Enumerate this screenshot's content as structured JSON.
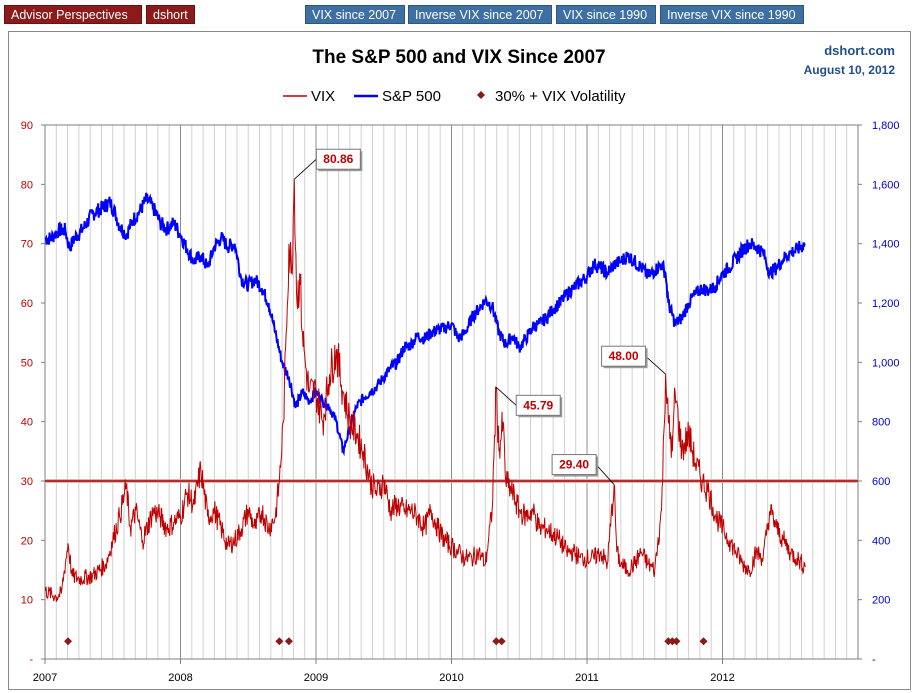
{
  "nav": {
    "buttons": [
      {
        "label": "Advisor Perspectives",
        "style": "red"
      },
      {
        "label": "dshort",
        "style": "red"
      },
      {
        "label": "VIX since 2007",
        "style": "blue"
      },
      {
        "label": "Inverse VIX since 2007",
        "style": "blue"
      },
      {
        "label": "VIX since 1990",
        "style": "blue"
      },
      {
        "label": "Inverse VIX since 1990",
        "style": "blue"
      }
    ]
  },
  "colors": {
    "vix": "#c00000",
    "sp500": "#0000ff",
    "threshold_line": "#b03030",
    "marker": "#8b1a1a",
    "left_axis_text": "#c00000",
    "right_axis_text": "#0000cc",
    "source_text": "#1f4e8c",
    "nav_red": "#8b1a1a",
    "nav_blue": "#3d6fa3"
  },
  "chart_data": {
    "type": "line",
    "title": "The S&P 500 and VIX Since 2007",
    "source": "dshort.com",
    "date": "August 10, 2012",
    "legend": [
      {
        "name": "VIX",
        "kind": "line",
        "color": "#c00000"
      },
      {
        "name": "S&P 500",
        "kind": "line",
        "color": "#0000ff"
      },
      {
        "name": "30% + VIX Volatility",
        "kind": "marker",
        "color": "#8b1a1a"
      }
    ],
    "legend_position": "top-center",
    "x_ticks": [
      "2007",
      "2008",
      "2009",
      "2010",
      "2011",
      "2012"
    ],
    "xlim": [
      2007.0,
      2013.0
    ],
    "left_axis": {
      "label": "VIX",
      "ylim": [
        0,
        90
      ],
      "ticks": [
        "-",
        "10",
        "20",
        "30",
        "40",
        "50",
        "60",
        "70",
        "80",
        "90"
      ]
    },
    "right_axis": {
      "label": "S&P 500",
      "ylim": [
        0,
        1800
      ],
      "ticks": [
        "-",
        "200",
        "400",
        "600",
        "800",
        "1,000",
        "1,200",
        "1,400",
        "1,600",
        "1,800"
      ]
    },
    "grid": "vertical minor gridlines",
    "threshold": {
      "value": 30,
      "axis": "left"
    },
    "series": [
      {
        "name": "VIX",
        "axis": "left",
        "x": [
          2007.0,
          2007.08,
          2007.12,
          2007.17,
          2007.2,
          2007.25,
          2007.35,
          2007.45,
          2007.5,
          2007.55,
          2007.6,
          2007.63,
          2007.67,
          2007.72,
          2007.8,
          2007.85,
          2007.9,
          2007.95,
          2008.0,
          2008.05,
          2008.1,
          2008.15,
          2008.2,
          2008.25,
          2008.3,
          2008.35,
          2008.4,
          2008.45,
          2008.5,
          2008.55,
          2008.6,
          2008.65,
          2008.7,
          2008.73,
          2008.76,
          2008.78,
          2008.8,
          2008.82,
          2008.84,
          2008.86,
          2008.88,
          2008.9,
          2008.92,
          2008.95,
          2009.0,
          2009.05,
          2009.1,
          2009.15,
          2009.2,
          2009.25,
          2009.3,
          2009.35,
          2009.4,
          2009.45,
          2009.5,
          2009.55,
          2009.6,
          2009.65,
          2009.7,
          2009.75,
          2009.8,
          2009.85,
          2009.9,
          2009.95,
          2010.0,
          2010.05,
          2010.1,
          2010.15,
          2010.2,
          2010.25,
          2010.3,
          2010.33,
          2010.35,
          2010.38,
          2010.4,
          2010.45,
          2010.5,
          2010.55,
          2010.6,
          2010.65,
          2010.7,
          2010.75,
          2010.8,
          2010.85,
          2010.9,
          2010.95,
          2011.0,
          2011.05,
          2011.1,
          2011.15,
          2011.2,
          2011.22,
          2011.25,
          2011.3,
          2011.35,
          2011.4,
          2011.45,
          2011.5,
          2011.55,
          2011.58,
          2011.6,
          2011.63,
          2011.65,
          2011.7,
          2011.75,
          2011.8,
          2011.85,
          2011.9,
          2011.95,
          2012.0,
          2012.05,
          2012.1,
          2012.15,
          2012.2,
          2012.25,
          2012.3,
          2012.35,
          2012.4,
          2012.45,
          2012.5,
          2012.55,
          2012.61
        ],
        "values": [
          11.5,
          10.5,
          11,
          19.5,
          14,
          13.5,
          14,
          16,
          20,
          24,
          29,
          22,
          25,
          20,
          25,
          24,
          22,
          23,
          24,
          28,
          26,
          32,
          24,
          25,
          22,
          19,
          20,
          22,
          25,
          22,
          25,
          22,
          24,
          30,
          40,
          55,
          70,
          65,
          80.86,
          60,
          65,
          55,
          50,
          45,
          45,
          40,
          48,
          52,
          45,
          40,
          38,
          35,
          30,
          28,
          30,
          25,
          26,
          25,
          25,
          24,
          22,
          25,
          22,
          20,
          19,
          18,
          17,
          17,
          18,
          16,
          25,
          45.79,
          35,
          40,
          30,
          28,
          25,
          24,
          25,
          22,
          22,
          21,
          20,
          18,
          18,
          17,
          17,
          17,
          18,
          16,
          29.4,
          18,
          16,
          15,
          16,
          18,
          16,
          15,
          25,
          48,
          40,
          35,
          45,
          35,
          38,
          33,
          30,
          28,
          24,
          22,
          20,
          18,
          16,
          15,
          18,
          17,
          25,
          22,
          20,
          18,
          17,
          15.5
        ],
        "labels": [
          {
            "text": "80.86",
            "x": 2008.84,
            "y": 80.86
          },
          {
            "text": "45.79",
            "x": 2010.33,
            "y": 45.79
          },
          {
            "text": "29.40",
            "x": 2011.2,
            "y": 29.4
          },
          {
            "text": "48.00",
            "x": 2011.58,
            "y": 48.0
          }
        ]
      },
      {
        "name": "S&P 500",
        "axis": "right",
        "x": [
          2007.0,
          2007.05,
          2007.1,
          2007.15,
          2007.18,
          2007.22,
          2007.28,
          2007.35,
          2007.42,
          2007.48,
          2007.52,
          2007.55,
          2007.6,
          2007.65,
          2007.7,
          2007.75,
          2007.8,
          2007.85,
          2007.9,
          2007.95,
          2008.0,
          2008.05,
          2008.1,
          2008.15,
          2008.2,
          2008.25,
          2008.3,
          2008.35,
          2008.4,
          2008.45,
          2008.5,
          2008.55,
          2008.6,
          2008.65,
          2008.7,
          2008.75,
          2008.8,
          2008.85,
          2008.9,
          2008.95,
          2009.0,
          2009.05,
          2009.1,
          2009.15,
          2009.2,
          2009.25,
          2009.3,
          2009.35,
          2009.4,
          2009.45,
          2009.5,
          2009.55,
          2009.6,
          2009.65,
          2009.7,
          2009.75,
          2009.8,
          2009.85,
          2009.9,
          2009.95,
          2010.0,
          2010.05,
          2010.1,
          2010.15,
          2010.2,
          2010.25,
          2010.3,
          2010.35,
          2010.4,
          2010.45,
          2010.5,
          2010.55,
          2010.6,
          2010.65,
          2010.7,
          2010.75,
          2010.8,
          2010.85,
          2010.9,
          2010.95,
          2011.0,
          2011.05,
          2011.1,
          2011.15,
          2011.2,
          2011.25,
          2011.3,
          2011.35,
          2011.4,
          2011.45,
          2011.5,
          2011.55,
          2011.58,
          2011.6,
          2011.65,
          2011.7,
          2011.75,
          2011.8,
          2011.85,
          2011.9,
          2011.95,
          2012.0,
          2012.05,
          2012.1,
          2012.15,
          2012.2,
          2012.25,
          2012.3,
          2012.35,
          2012.4,
          2012.45,
          2012.5,
          2012.55,
          2012.61
        ],
        "values": [
          1415,
          1420,
          1445,
          1445,
          1385,
          1420,
          1450,
          1500,
          1520,
          1540,
          1500,
          1460,
          1430,
          1480,
          1510,
          1550,
          1520,
          1470,
          1450,
          1470,
          1430,
          1380,
          1340,
          1360,
          1320,
          1390,
          1420,
          1390,
          1400,
          1280,
          1260,
          1280,
          1250,
          1200,
          1100,
          1000,
          950,
          850,
          900,
          870,
          900,
          870,
          850,
          800,
          700,
          780,
          850,
          880,
          900,
          920,
          950,
          980,
          1000,
          1050,
          1060,
          1090,
          1080,
          1100,
          1110,
          1115,
          1130,
          1080,
          1100,
          1150,
          1180,
          1210,
          1190,
          1100,
          1060,
          1090,
          1050,
          1080,
          1120,
          1130,
          1150,
          1180,
          1200,
          1230,
          1250,
          1270,
          1290,
          1330,
          1320,
          1300,
          1330,
          1340,
          1360,
          1340,
          1320,
          1290,
          1310,
          1330,
          1300,
          1200,
          1130,
          1150,
          1200,
          1230,
          1250,
          1240,
          1260,
          1300,
          1320,
          1350,
          1380,
          1400,
          1390,
          1370,
          1300,
          1320,
          1350,
          1370,
          1380,
          1400
        ]
      }
    ],
    "markers": {
      "name": "30% + VIX Volatility",
      "x": [
        2007.17,
        2008.73,
        2008.8,
        2010.33,
        2010.37,
        2011.6,
        2011.63,
        2011.66,
        2011.86
      ],
      "y": 3
    }
  }
}
